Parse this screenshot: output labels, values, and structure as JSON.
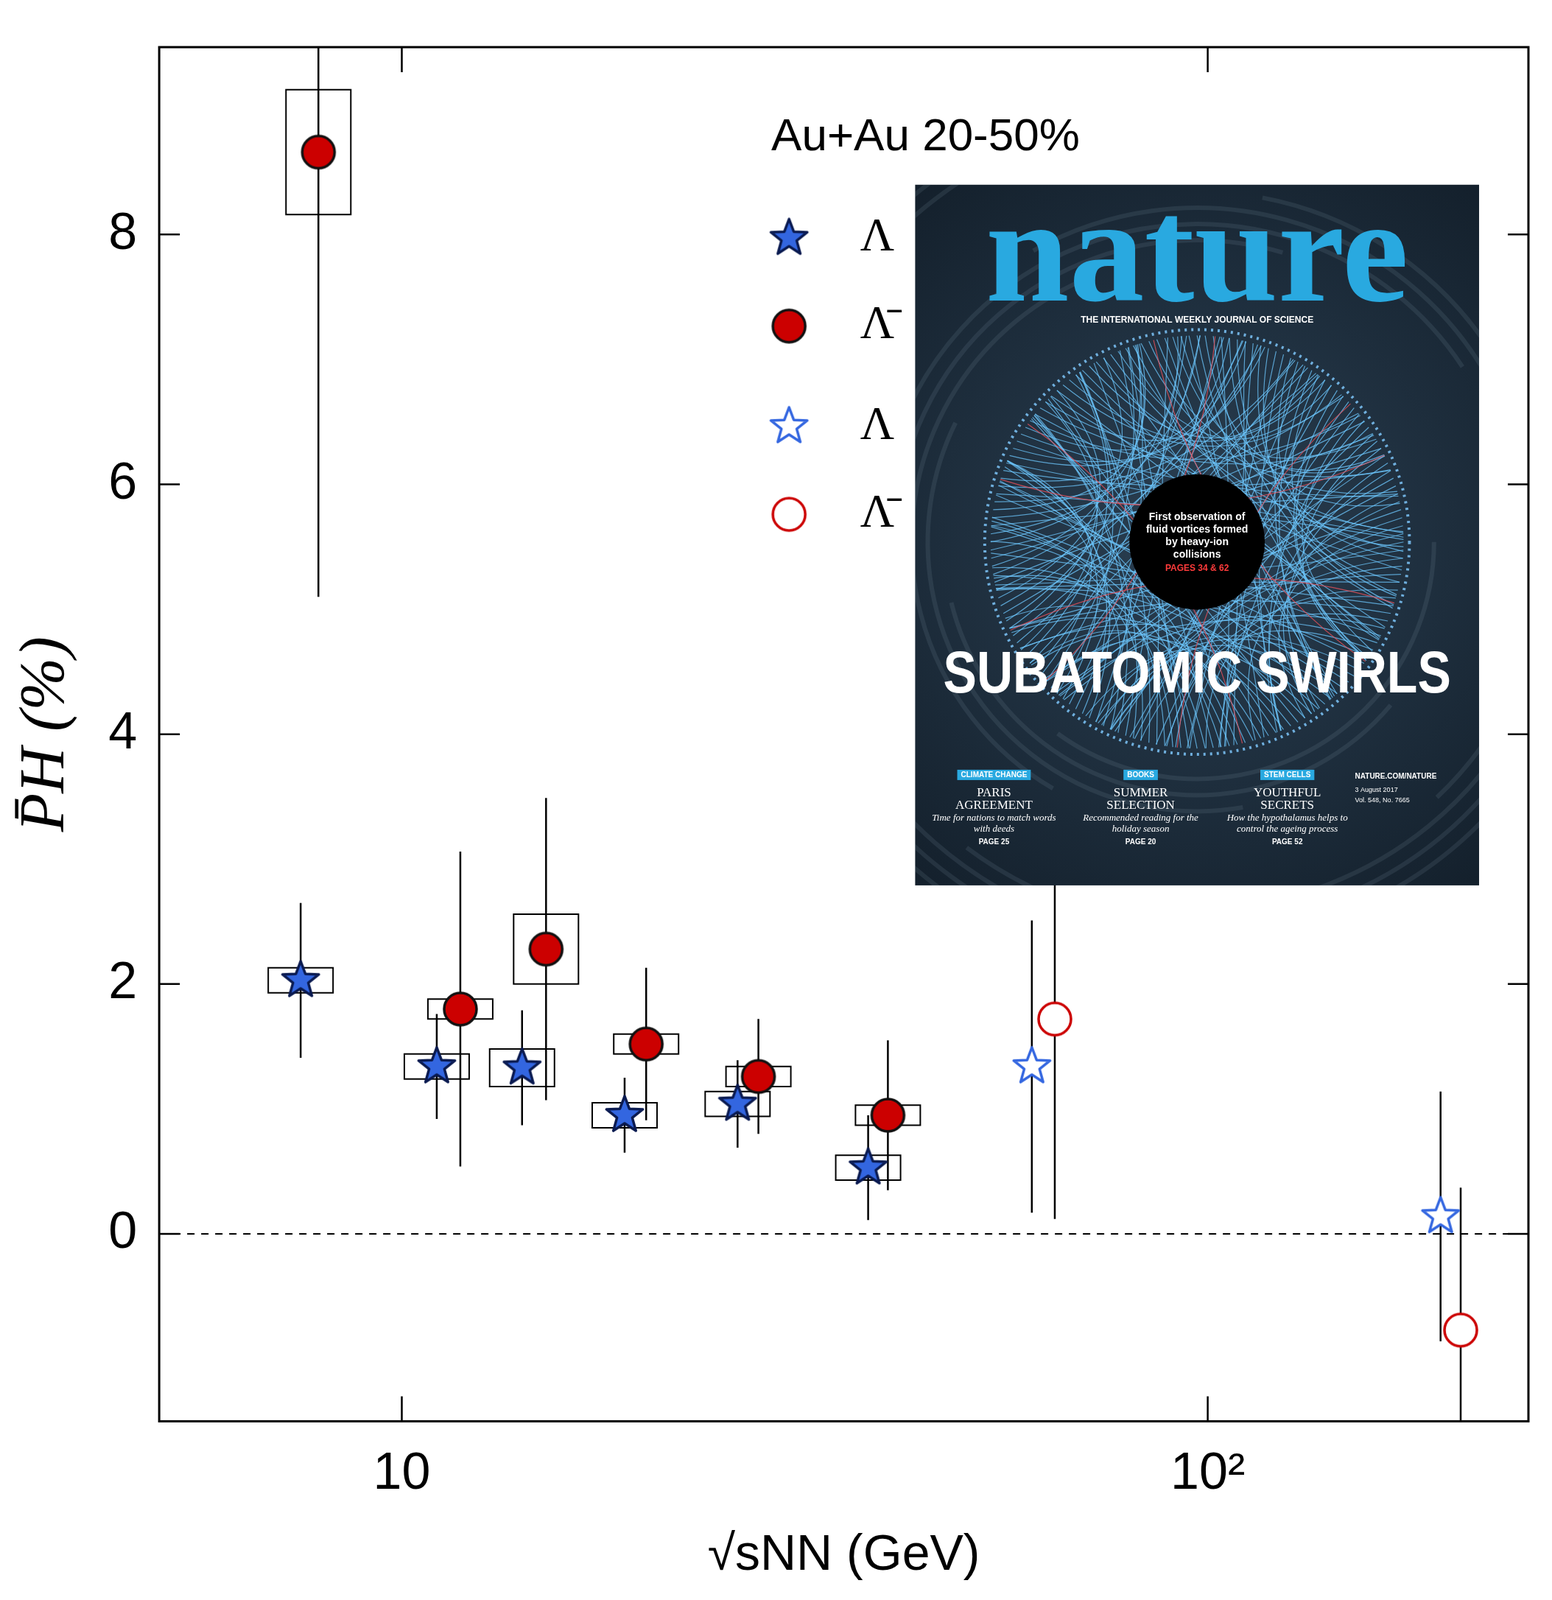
{
  "chart_data": {
    "type": "scatter",
    "annotations": [
      "Au+Au 20-50%"
    ],
    "x_label": "√sNN (GeV)",
    "y_label": "P̄H (%)",
    "log": "x",
    "xlim": [
      5,
      250
    ],
    "xticks": [
      10,
      {
        "value": 100,
        "label": "10²"
      }
    ],
    "ylim": [
      -1.5,
      9.5
    ],
    "yticks": [
      0,
      2,
      4,
      6,
      8
    ],
    "grid": false,
    "legend": "top-right",
    "hline": {
      "y": 0,
      "line_style": "dashed"
    },
    "series": [
      {
        "name": "Λ",
        "color": "#3366e0",
        "marker": "star",
        "x": [
          7.49,
          11.05,
          14.1,
          18.9,
          26.1,
          37.9
        ],
        "values": [
          2.03,
          1.34,
          1.33,
          0.95,
          1.04,
          0.53
        ],
        "errors": [
          0.62,
          0.42,
          0.46,
          0.3,
          0.35,
          0.42
        ],
        "sys_errors": [
          0.1,
          0.1,
          0.15,
          0.1,
          0.1,
          0.1
        ]
      },
      {
        "name": "Λ̄",
        "color": "#cc0000",
        "marker": "circle",
        "x": [
          7.88,
          11.82,
          15.1,
          20.1,
          27.7,
          40.1
        ],
        "values": [
          8.66,
          1.8,
          2.28,
          1.52,
          1.26,
          0.95
        ],
        "errors": [
          3.56,
          1.26,
          1.21,
          0.61,
          0.46,
          0.6
        ],
        "sys_errors": [
          0.5,
          0.08,
          0.28,
          0.08,
          0.08,
          0.08
        ]
      },
      {
        "name": "Λ",
        "color": "#3366e0",
        "marker": "open_star",
        "x": [
          60.5,
          194.5
        ],
        "values": [
          1.34,
          0.14
        ],
        "errors": [
          1.17,
          1.0
        ]
      },
      {
        "name": "Λ̄",
        "color": "#cc0000",
        "marker": "open_circle",
        "x": [
          64.6,
          206
        ],
        "values": [
          1.72,
          -0.77
        ],
        "errors": [
          1.6,
          1.14
        ]
      }
    ],
    "inset": {
      "masthead": "nature",
      "tagline": "THE INTERNATIONAL WEEKLY JOURNAL OF SCIENCE",
      "cover_blurb": "First observation of fluid vortices formed by heavy-ion collisions",
      "cover_pages": "PAGES 34 & 62",
      "headline": "SUBATOMIC SWIRLS",
      "stories": [
        {
          "tag": "CLIMATE CHANGE",
          "title": "PARIS AGREEMENT",
          "text": "Time for nations to match words with deeds",
          "page": "PAGE 25"
        },
        {
          "tag": "BOOKS",
          "title": "SUMMER SELECTION",
          "text": "Recommended reading for the holiday season",
          "page": "PAGE 20"
        },
        {
          "tag": "STEM CELLS",
          "title": "YOUTHFUL SECRETS",
          "text": "How the hypothalamus helps to control the ageing process",
          "page": "PAGE 52"
        }
      ],
      "site": "NATURE.COM/NATURE",
      "date": "3 August 2017",
      "volume": "Vol. 548, No. 7665"
    }
  }
}
